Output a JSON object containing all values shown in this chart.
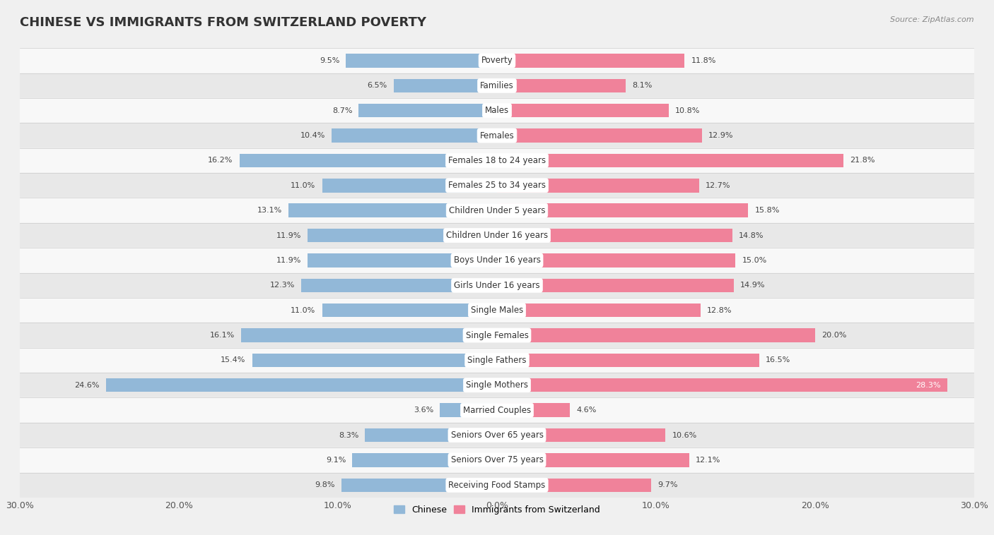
{
  "title": "CHINESE VS IMMIGRANTS FROM SWITZERLAND POVERTY",
  "source": "Source: ZipAtlas.com",
  "categories": [
    "Poverty",
    "Families",
    "Males",
    "Females",
    "Females 18 to 24 years",
    "Females 25 to 34 years",
    "Children Under 5 years",
    "Children Under 16 years",
    "Boys Under 16 years",
    "Girls Under 16 years",
    "Single Males",
    "Single Females",
    "Single Fathers",
    "Single Mothers",
    "Married Couples",
    "Seniors Over 65 years",
    "Seniors Over 75 years",
    "Receiving Food Stamps"
  ],
  "chinese_values": [
    9.5,
    6.5,
    8.7,
    10.4,
    16.2,
    11.0,
    13.1,
    11.9,
    11.9,
    12.3,
    11.0,
    16.1,
    15.4,
    24.6,
    3.6,
    8.3,
    9.1,
    9.8
  ],
  "swiss_values": [
    11.8,
    8.1,
    10.8,
    12.9,
    21.8,
    12.7,
    15.8,
    14.8,
    15.0,
    14.9,
    12.8,
    20.0,
    16.5,
    28.3,
    4.6,
    10.6,
    12.1,
    9.7
  ],
  "chinese_color": "#92b8d8",
  "swiss_color": "#f0829a",
  "chinese_label": "Chinese",
  "swiss_label": "Immigrants from Switzerland",
  "xlim": 30.0,
  "background_color": "#f0f0f0",
  "row_bg_light": "#f8f8f8",
  "row_bg_dark": "#e8e8e8",
  "bar_height": 0.55,
  "title_fontsize": 13,
  "label_fontsize": 8.5,
  "value_fontsize": 8.0,
  "axis_label_fontsize": 9,
  "legend_fontsize": 9
}
